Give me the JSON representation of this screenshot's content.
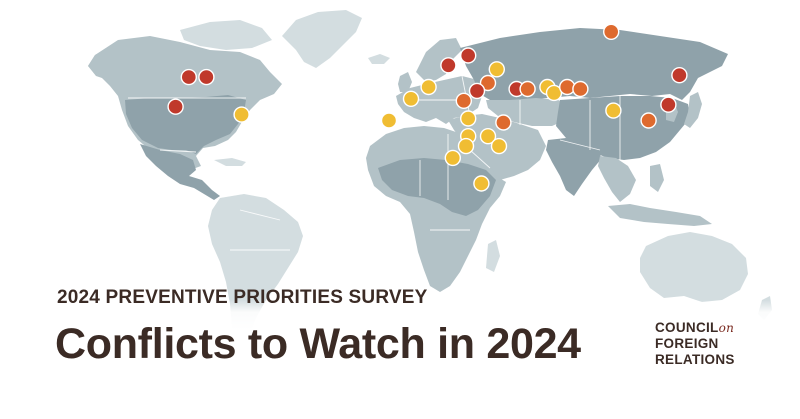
{
  "header": {
    "survey_label": "2024 PREVENTIVE PRIORITIES SURVEY",
    "title": "Conflicts to Watch in 2024"
  },
  "logo": {
    "line1": "COUNCIL",
    "line1_suffix": "on",
    "line2": "FOREIGN",
    "line3": "RELATIONS"
  },
  "colors": {
    "highest_priority": "#c0392b",
    "moderate_priority": "#de6a2e",
    "low_priority": "#f0bd33",
    "land": "#b3c2c7",
    "text": "#3b2b25"
  },
  "markers": [
    {
      "priority": "high",
      "lon": -96,
      "lat": 38
    },
    {
      "priority": "high",
      "lon": -88,
      "lat": 38
    },
    {
      "priority": "high",
      "lon": -102,
      "lat": 23
    },
    {
      "priority": "low",
      "lon": -72,
      "lat": 19
    },
    {
      "priority": "moderate",
      "lon": 96,
      "lat": 61
    },
    {
      "priority": "high",
      "lon": 31,
      "lat": 49
    },
    {
      "priority": "low",
      "lon": 44,
      "lat": 42
    },
    {
      "priority": "high",
      "lon": 22,
      "lat": 44
    },
    {
      "priority": "high",
      "lon": 127,
      "lat": 39
    },
    {
      "priority": "low",
      "lon": 13,
      "lat": 33
    },
    {
      "priority": "moderate",
      "lon": 40,
      "lat": 35
    },
    {
      "priority": "high",
      "lon": 35,
      "lat": 31
    },
    {
      "priority": "moderate",
      "lon": 29,
      "lat": 26
    },
    {
      "priority": "low",
      "lon": 5,
      "lat": 27
    },
    {
      "priority": "high",
      "lon": 53,
      "lat": 32
    },
    {
      "priority": "moderate",
      "lon": 58,
      "lat": 32
    },
    {
      "priority": "low",
      "lon": 67,
      "lat": 33
    },
    {
      "priority": "low",
      "lon": 70,
      "lat": 30
    },
    {
      "priority": "moderate",
      "lon": 76,
      "lat": 33
    },
    {
      "priority": "moderate",
      "lon": 82,
      "lat": 32
    },
    {
      "priority": "high",
      "lon": 122,
      "lat": 24
    },
    {
      "priority": "low",
      "lon": 97,
      "lat": 21
    },
    {
      "priority": "moderate",
      "lon": 113,
      "lat": 16
    },
    {
      "priority": "low",
      "lon": -5,
      "lat": 16
    },
    {
      "priority": "low",
      "lon": 31,
      "lat": 17
    },
    {
      "priority": "moderate",
      "lon": 47,
      "lat": 15
    },
    {
      "priority": "low",
      "lon": 31,
      "lat": 8
    },
    {
      "priority": "low",
      "lon": 40,
      "lat": 8
    },
    {
      "priority": "low",
      "lon": 30,
      "lat": 3
    },
    {
      "priority": "low",
      "lon": 45,
      "lat": 3
    },
    {
      "priority": "low",
      "lon": 24,
      "lat": -3
    },
    {
      "priority": "low",
      "lon": 37,
      "lat": -16
    }
  ]
}
